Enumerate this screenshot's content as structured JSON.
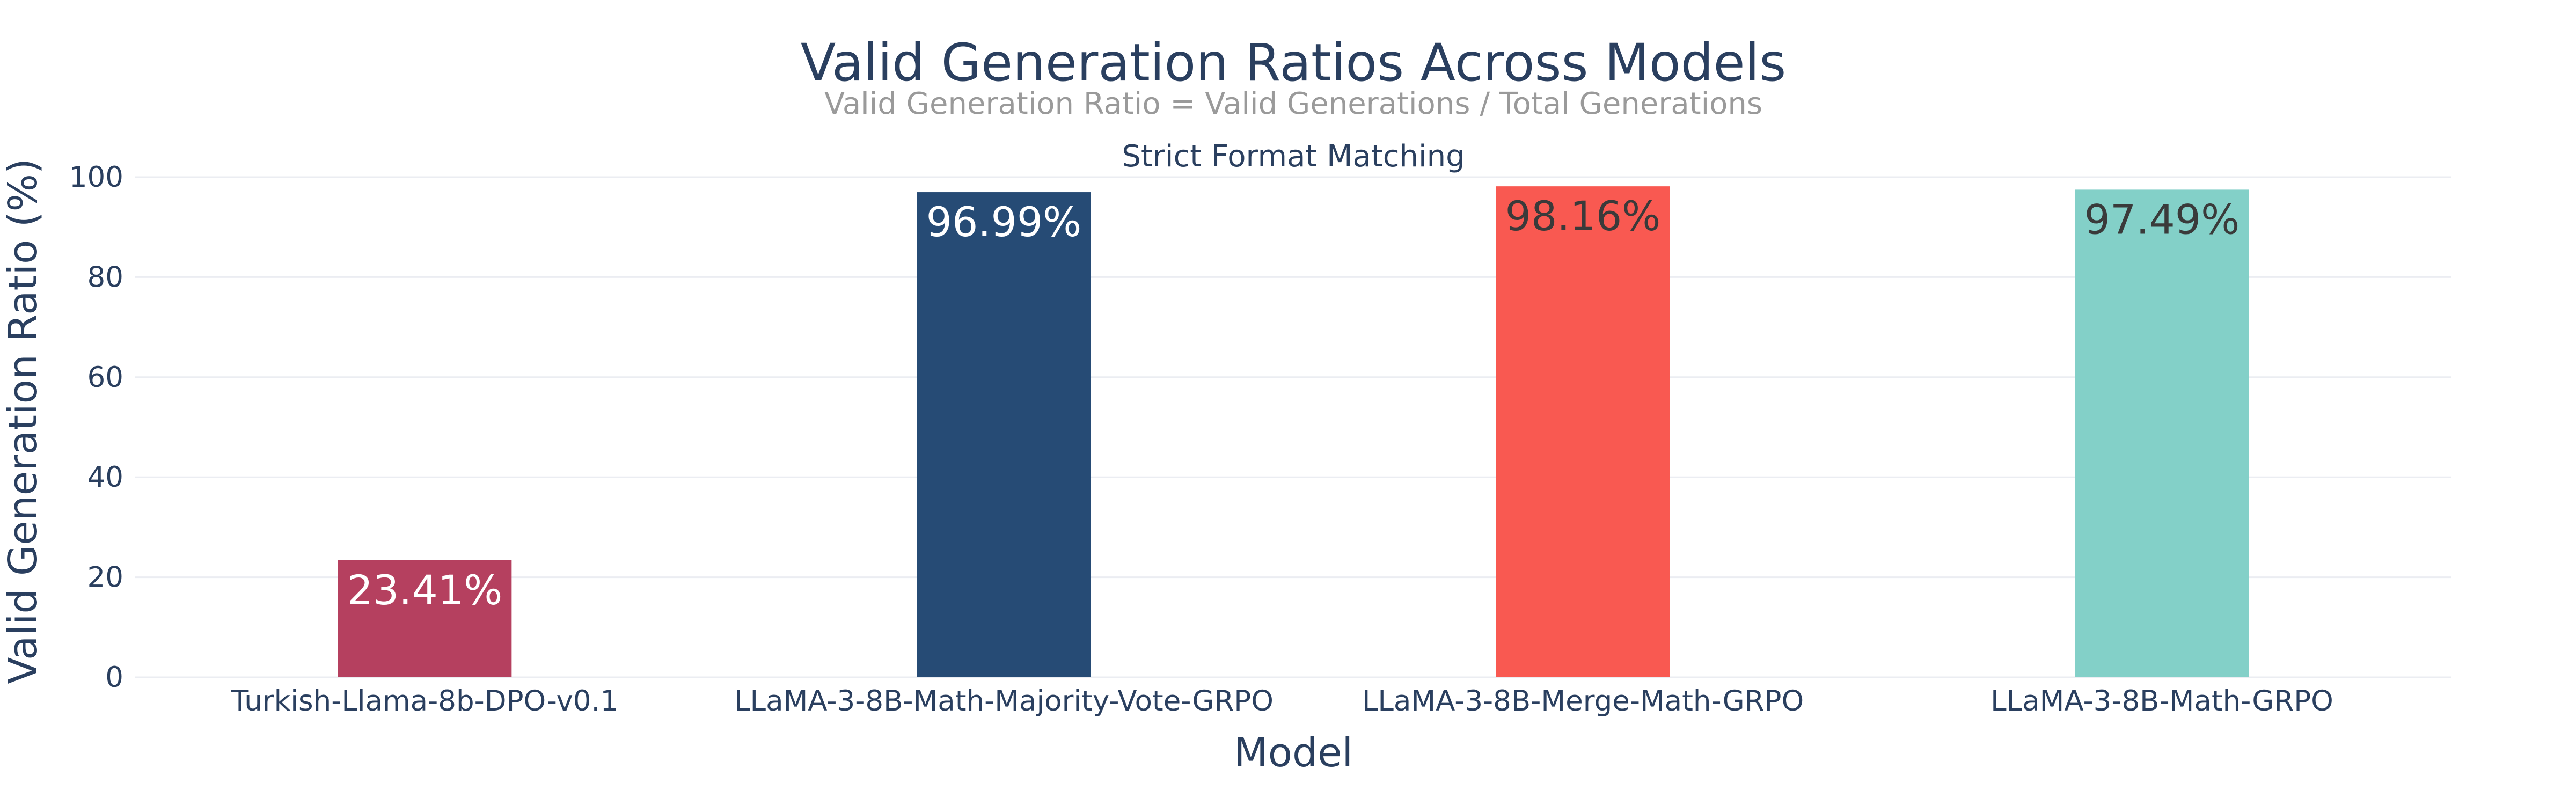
{
  "chart_data": {
    "type": "bar",
    "title": "Valid Generation Ratios Across Models",
    "subtitle": "Valid Generation Ratio = Valid Generations / Total Generations",
    "panel_title": "Strict Format Matching",
    "xlabel": "Model",
    "ylabel": "Valid Generation Ratio (%)",
    "ylim": [
      0,
      100
    ],
    "yticks": [
      0,
      20,
      40,
      60,
      80,
      100
    ],
    "grid": true,
    "categories": [
      "Turkish-Llama-8b-DPO-v0.1",
      "LLaMA-3-8B-Math-Majority-Vote-GRPO",
      "LLaMA-3-8B-Merge-Math-GRPO",
      "LLaMA-3-8B-Math-GRPO"
    ],
    "values": [
      23.41,
      96.99,
      98.16,
      97.49
    ],
    "data_labels": [
      "23.41%",
      "96.99%",
      "98.16%",
      "97.49%"
    ],
    "colors": [
      "#b5405f",
      "#264b75",
      "#f95951",
      "#83d0c8"
    ],
    "label_colors": [
      "#ffffff",
      "#ffffff",
      "#3a3a3a",
      "#3a3a3a"
    ]
  }
}
